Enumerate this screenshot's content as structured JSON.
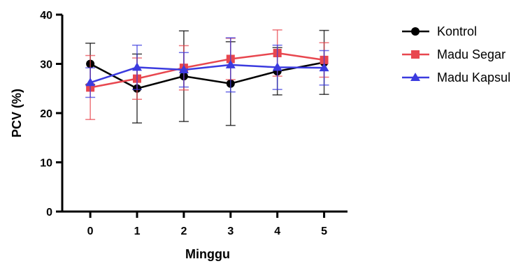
{
  "chart_data": {
    "type": "line",
    "xlabel": "Minggu",
    "ylabel": "PCV (%)",
    "x": [
      0,
      1,
      2,
      3,
      4,
      5
    ],
    "x_ticks": [
      "0",
      "1",
      "2",
      "3",
      "4",
      "5"
    ],
    "y_ticks": [
      "0",
      "10",
      "20",
      "30",
      "40"
    ],
    "xlim": [
      -0.6,
      5.5
    ],
    "ylim": [
      0,
      40
    ],
    "grid": false,
    "legend_position": "right",
    "series": [
      {
        "name": "Kontrol",
        "color": "#000000",
        "marker": "circle",
        "values": [
          30.0,
          25.0,
          27.5,
          26.0,
          28.5,
          30.3
        ],
        "error": [
          4.2,
          7.0,
          9.2,
          8.5,
          4.8,
          6.5
        ]
      },
      {
        "name": "Madu Segar",
        "color": "#e8474f",
        "marker": "square",
        "values": [
          25.2,
          27.0,
          29.2,
          31.0,
          32.2,
          30.8
        ],
        "error": [
          6.5,
          4.2,
          4.5,
          4.2,
          4.7,
          3.5
        ]
      },
      {
        "name": "Madu Kapsul",
        "color": "#3b3bdf",
        "marker": "triangle",
        "values": [
          26.2,
          29.3,
          28.8,
          29.8,
          29.3,
          29.2
        ],
        "error": [
          3.0,
          4.5,
          3.5,
          5.5,
          4.5,
          3.5
        ]
      }
    ]
  }
}
